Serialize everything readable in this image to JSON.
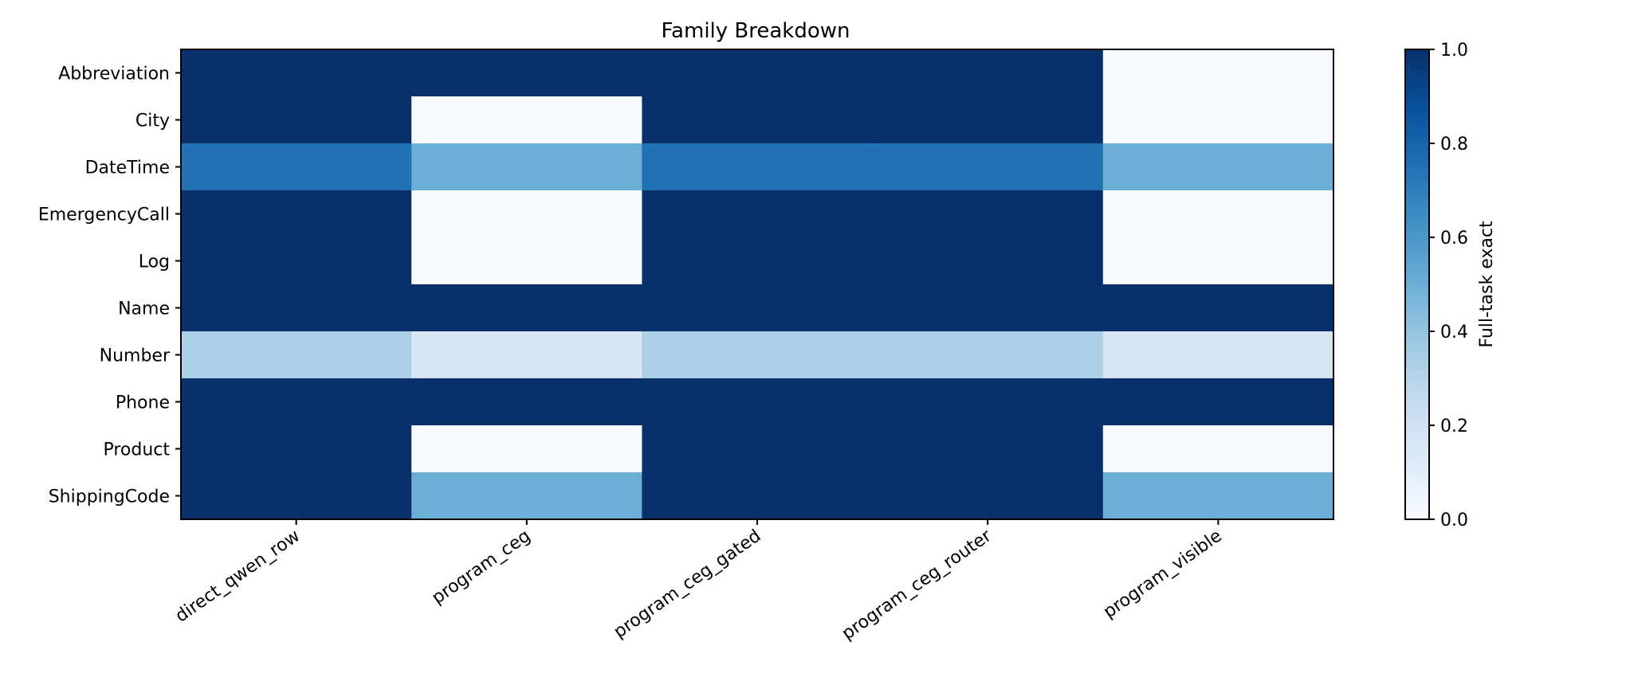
{
  "chart_data": {
    "type": "heatmap",
    "title": "Family Breakdown",
    "x_categories": [
      "direct_qwen_row",
      "program_ceg",
      "program_ceg_gated",
      "program_ceg_router",
      "program_visible"
    ],
    "y_categories": [
      "Abbreviation",
      "City",
      "DateTime",
      "EmergencyCall",
      "Log",
      "Name",
      "Number",
      "Phone",
      "Product",
      "ShippingCode"
    ],
    "values": [
      [
        1.0,
        1.0,
        1.0,
        1.0,
        0.0
      ],
      [
        1.0,
        0.0,
        1.0,
        1.0,
        0.0
      ],
      [
        0.75,
        0.5,
        0.75,
        0.75,
        0.5
      ],
      [
        1.0,
        0.0,
        1.0,
        1.0,
        0.0
      ],
      [
        1.0,
        0.0,
        1.0,
        1.0,
        0.0
      ],
      [
        1.0,
        1.0,
        1.0,
        1.0,
        1.0
      ],
      [
        0.33,
        0.17,
        0.33,
        0.33,
        0.17
      ],
      [
        1.0,
        1.0,
        1.0,
        1.0,
        1.0
      ],
      [
        1.0,
        0.0,
        1.0,
        1.0,
        0.0
      ],
      [
        1.0,
        0.5,
        1.0,
        1.0,
        0.5
      ]
    ],
    "colorbar": {
      "label": "Full-task exact",
      "range": [
        0.0,
        1.0
      ],
      "ticks": [
        0.0,
        0.2,
        0.4,
        0.6,
        0.8,
        1.0
      ],
      "tick_labels": [
        "0.0",
        "0.2",
        "0.4",
        "0.6",
        "0.8",
        "1.0"
      ]
    },
    "colormap": "Blues",
    "colormap_stops": [
      "#f7fbff",
      "#deebf7",
      "#c6dbef",
      "#9ecae1",
      "#6baed6",
      "#4292c6",
      "#2171b5",
      "#08519c",
      "#08306b"
    ]
  }
}
